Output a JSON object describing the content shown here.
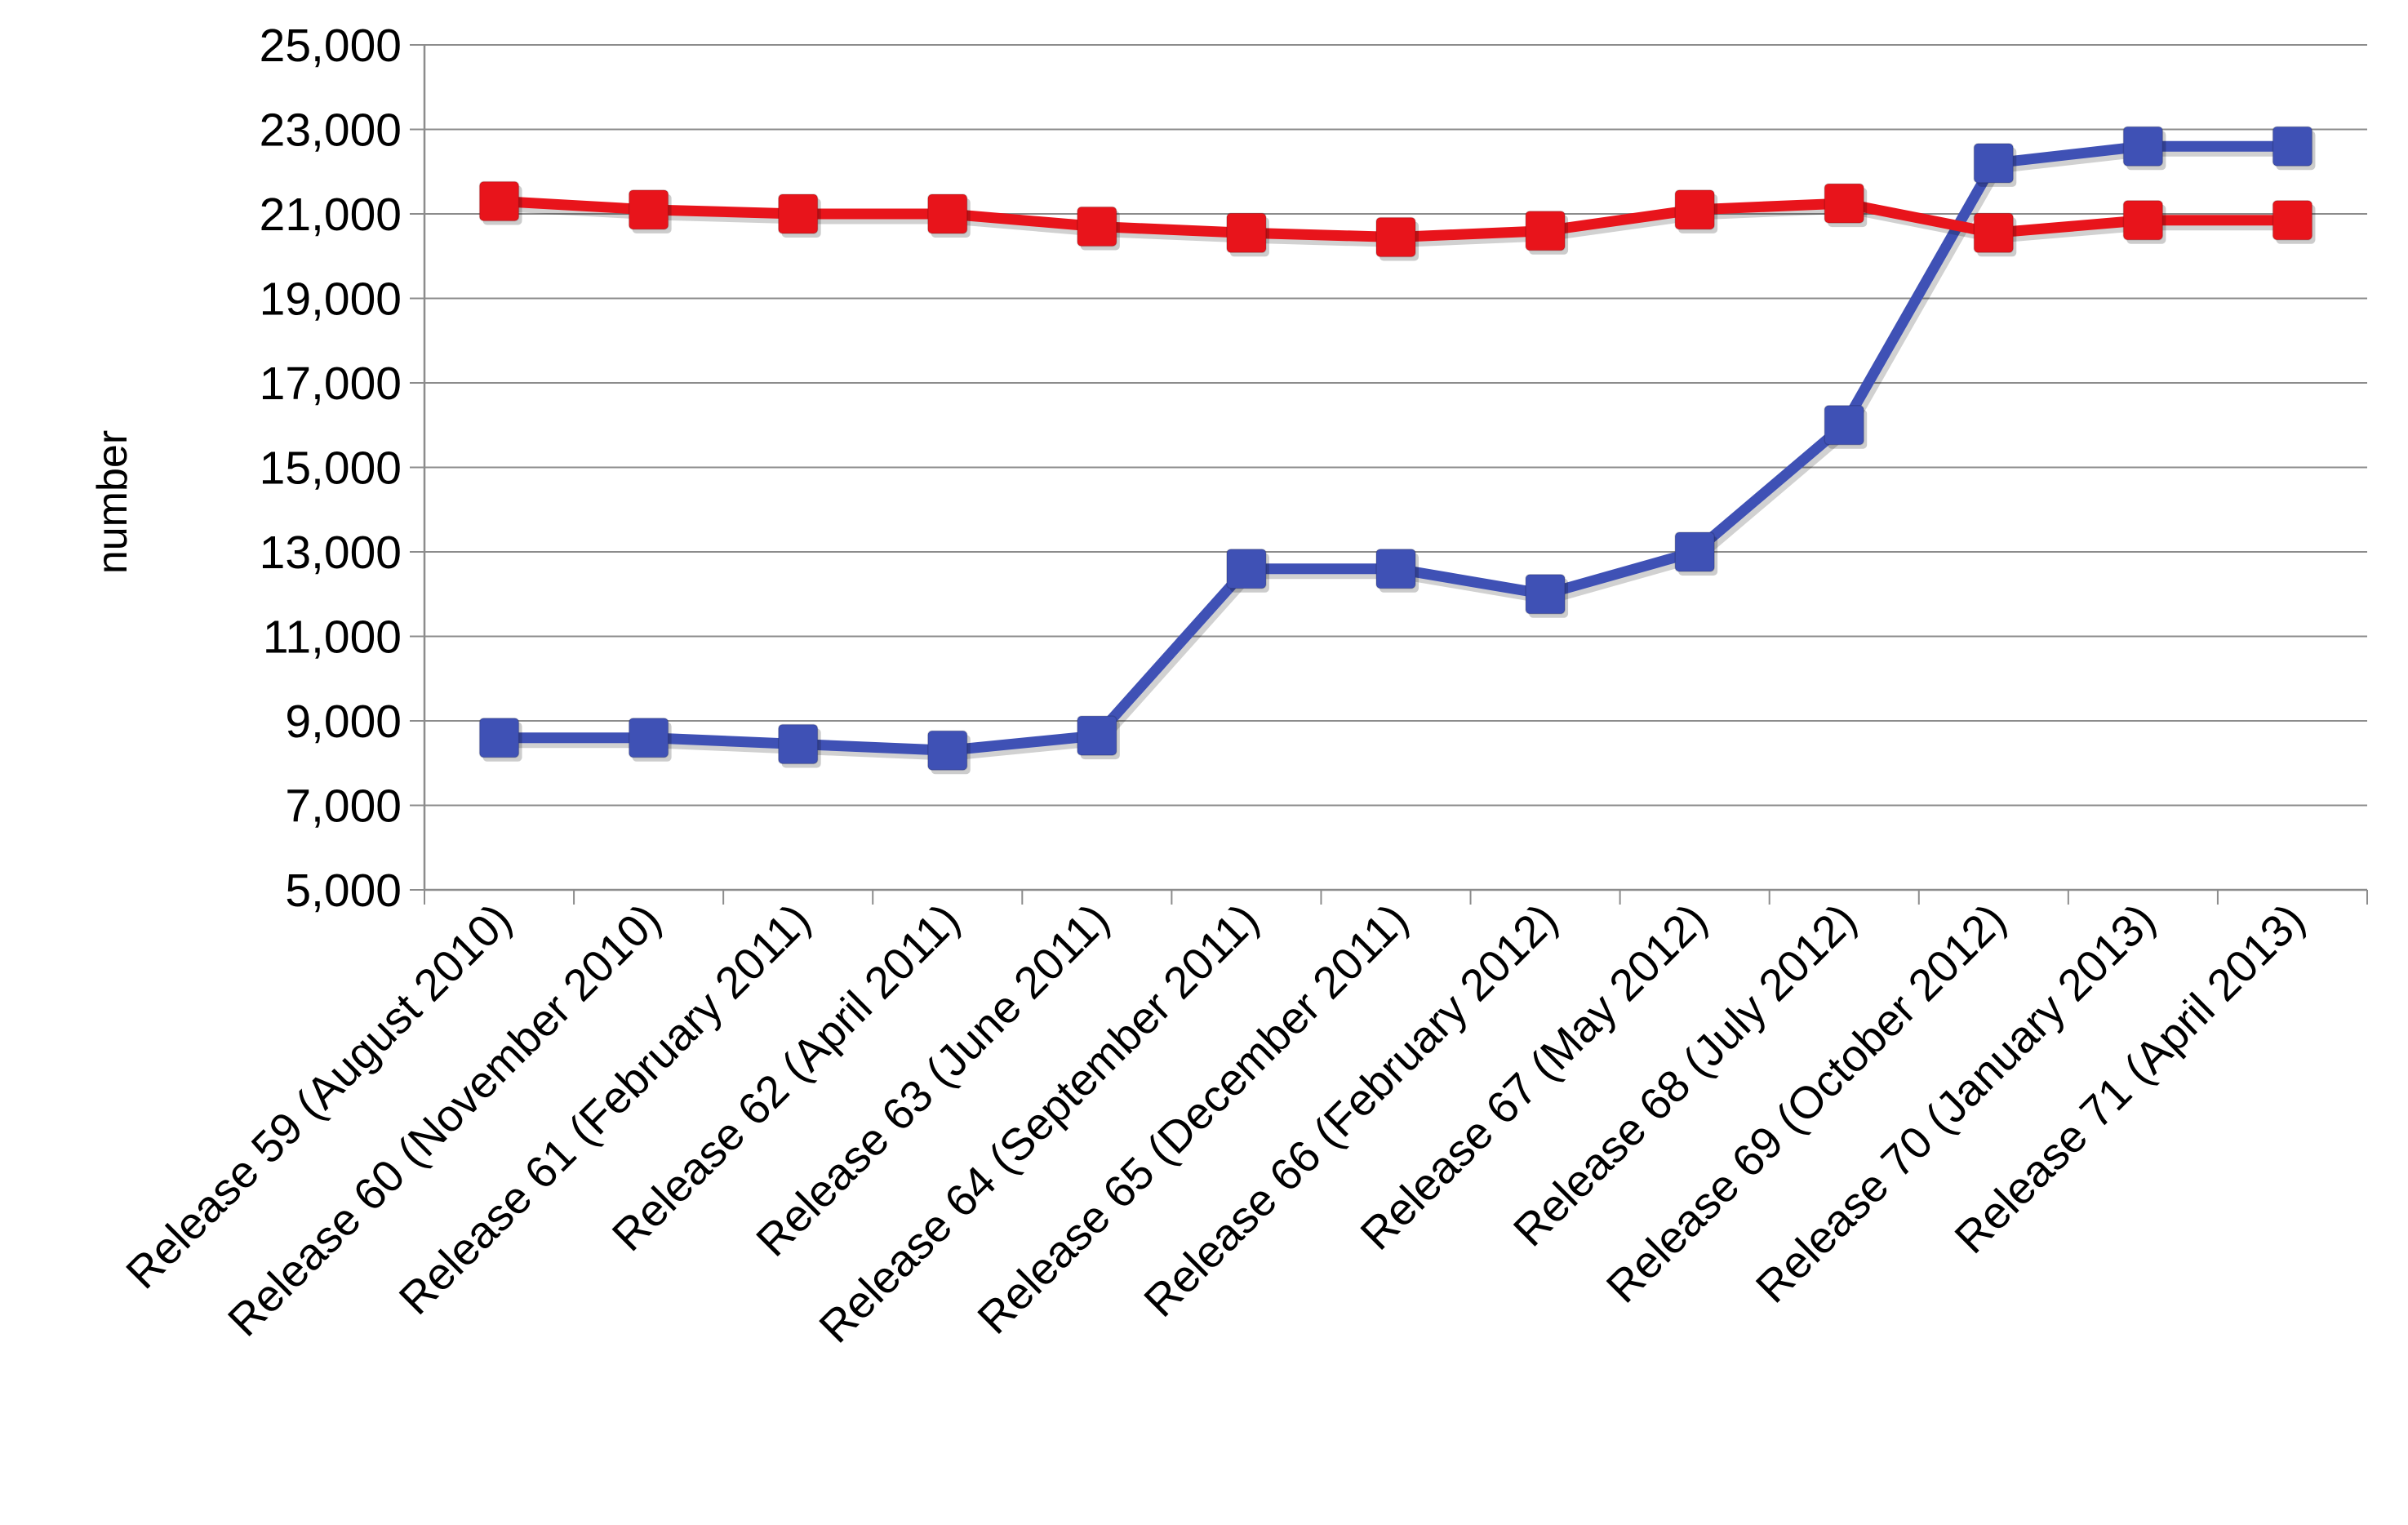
{
  "chart_data": {
    "type": "line",
    "title": "",
    "xlabel": "",
    "ylabel": "number",
    "ylim": [
      5000,
      25000
    ],
    "y_ticks": [
      "5,000",
      "7,000",
      "9,000",
      "11,000",
      "13,000",
      "15,000",
      "17,000",
      "19,000",
      "21,000",
      "23,000",
      "25,000"
    ],
    "grid": true,
    "legend": "none",
    "categories": [
      "Release 59 (August 2010)",
      "Release 60 (November 2010)",
      "Release 61 (February 2011)",
      "Release 62 (April 2011)",
      "Release 63 (June 2011)",
      "Release 64 (September 2011)",
      "Release 65 (December 2011)",
      "Release 66 (February 2012)",
      "Release 67 (May 2012)",
      "Release 68 (July 2012)",
      "Release 69 (October 2012)",
      "Release 70 (January 2013)",
      "Release 71 (April 2013)"
    ],
    "series": [
      {
        "color": "#3F51B5",
        "values": [
          8600,
          8600,
          8450,
          8300,
          8650,
          12600,
          12600,
          12000,
          13000,
          16000,
          22200,
          22600,
          22600
        ]
      },
      {
        "color": "#E8141B",
        "values": [
          21300,
          21100,
          21000,
          21000,
          20700,
          20550,
          20450,
          20600,
          21100,
          21250,
          20550,
          20850,
          20850
        ]
      }
    ]
  }
}
